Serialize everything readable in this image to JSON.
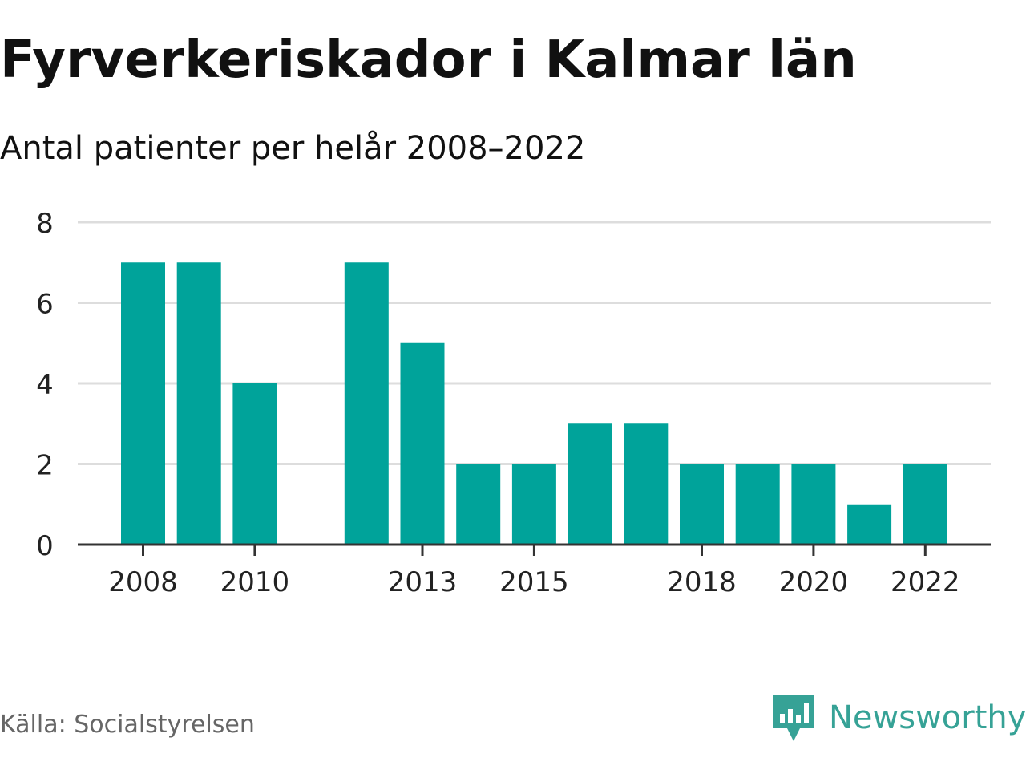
{
  "header": {
    "title": "Fyrverkeriskador i Kalmar län",
    "subtitle": "Antal patienter per helår 2008–2022"
  },
  "footer": {
    "source": "Källa: Socialstyrelsen",
    "brand": "Newsworthy"
  },
  "colors": {
    "bar": "#00a39a",
    "grid": "#dddddd",
    "axis": "#333333",
    "brand": "#36a296"
  },
  "chart_data": {
    "type": "bar",
    "categories": [
      "2008",
      "2009",
      "2010",
      "2011",
      "2012",
      "2013",
      "2014",
      "2015",
      "2016",
      "2017",
      "2018",
      "2019",
      "2020",
      "2021",
      "2022"
    ],
    "values": [
      7,
      7,
      4,
      0,
      7,
      5,
      2,
      2,
      3,
      3,
      2,
      2,
      2,
      1,
      2
    ],
    "xtick_labels": [
      "2008",
      "2010",
      "2013",
      "2015",
      "2018",
      "2020",
      "2022"
    ],
    "yticks": [
      0,
      2,
      4,
      6,
      8
    ],
    "ylim": [
      0,
      8
    ],
    "grid": true,
    "legend": "none"
  }
}
